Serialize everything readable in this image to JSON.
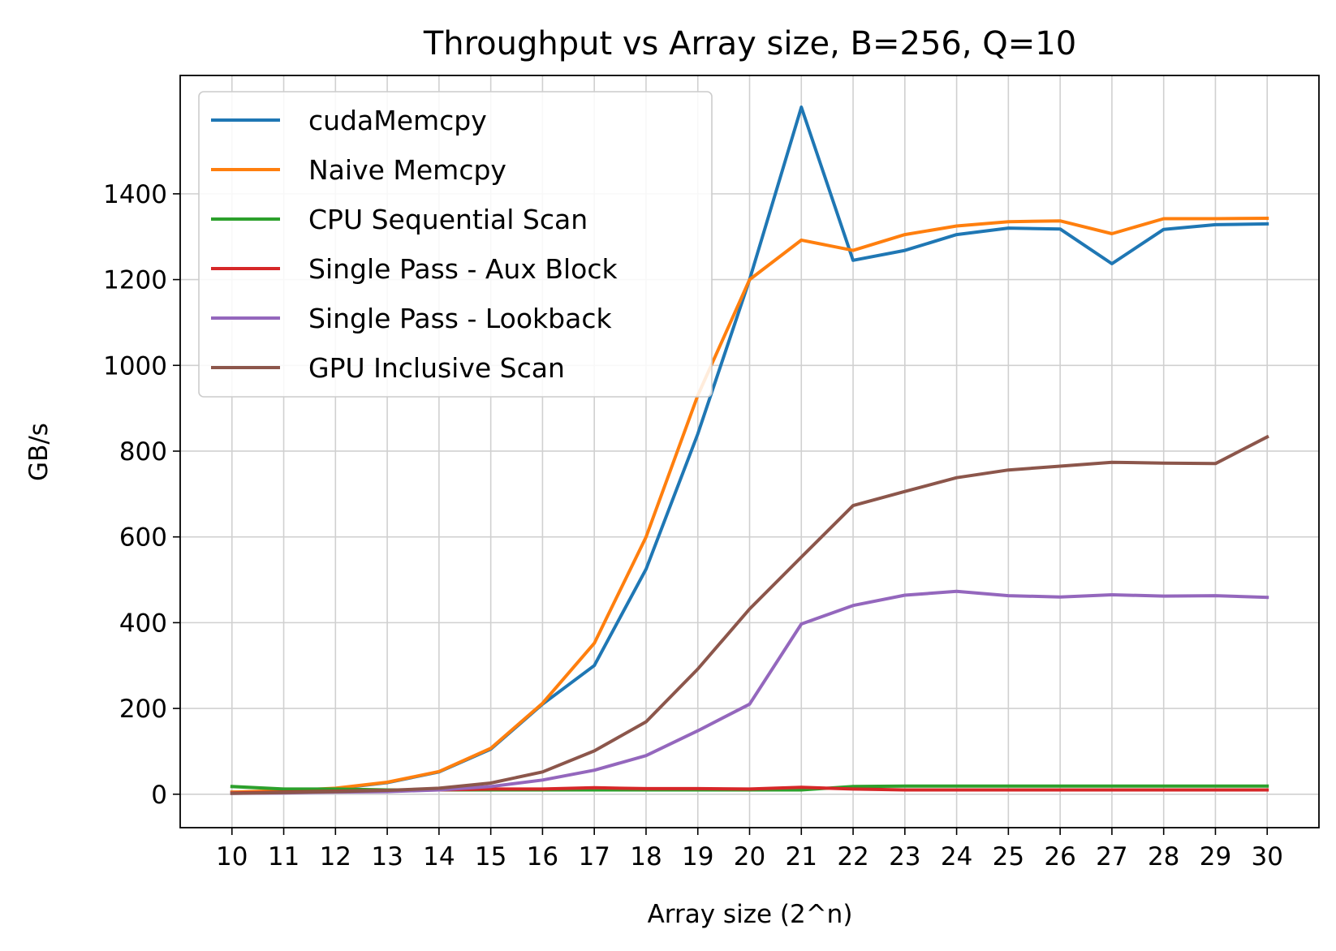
{
  "chart_data": {
    "type": "line",
    "title": "Throughput vs Array size, B=256, Q=10",
    "xlabel": "Array size (2^n)",
    "ylabel": "GB/s",
    "x": [
      10,
      11,
      12,
      13,
      14,
      15,
      16,
      17,
      18,
      19,
      20,
      21,
      22,
      23,
      24,
      25,
      26,
      27,
      28,
      29,
      30
    ],
    "xlim": [
      9,
      31
    ],
    "ylim": [
      -78,
      1676
    ],
    "yticks": [
      0,
      200,
      400,
      600,
      800,
      1000,
      1200,
      1400
    ],
    "grid": true,
    "legend_position": "upper-left",
    "series": [
      {
        "name": "cudaMemcpy",
        "color": "#1f77b4",
        "values": [
          5,
          7,
          13,
          27,
          52,
          105,
          210,
          300,
          525,
          840,
          1200,
          1602,
          1245,
          1268,
          1305,
          1320,
          1318,
          1237,
          1317,
          1328,
          1330
        ]
      },
      {
        "name": "Naive Memcpy",
        "color": "#ff7f0e",
        "values": [
          5,
          8,
          14,
          28,
          53,
          107,
          212,
          352,
          600,
          930,
          1200,
          1292,
          1268,
          1305,
          1325,
          1335,
          1337,
          1307,
          1342,
          1342,
          1343
        ]
      },
      {
        "name": "CPU Sequential Scan",
        "color": "#2ca02c",
        "values": [
          18,
          12,
          12,
          10,
          10,
          10,
          10,
          10,
          10,
          10,
          10,
          10,
          18,
          19,
          19,
          19,
          19,
          19,
          19,
          19,
          19
        ]
      },
      {
        "name": "Single Pass - Aux Block",
        "color": "#d62728",
        "values": [
          3,
          5,
          7,
          9,
          10,
          12,
          12,
          15,
          13,
          13,
          12,
          16,
          12,
          10,
          10,
          10,
          10,
          10,
          10,
          10,
          10
        ]
      },
      {
        "name": "Single Pass - Lookback",
        "color": "#9467bd",
        "values": [
          2,
          3,
          5,
          6,
          10,
          18,
          33,
          56,
          90,
          148,
          210,
          397,
          440,
          464,
          473,
          463,
          460,
          465,
          462,
          463,
          459
        ]
      },
      {
        "name": "GPU Inclusive Scan",
        "color": "#8c564b",
        "values": [
          2,
          4,
          6,
          9,
          14,
          26,
          52,
          101,
          169,
          292,
          432,
          553,
          673,
          706,
          738,
          756,
          765,
          774,
          772,
          771,
          833
        ]
      }
    ]
  }
}
